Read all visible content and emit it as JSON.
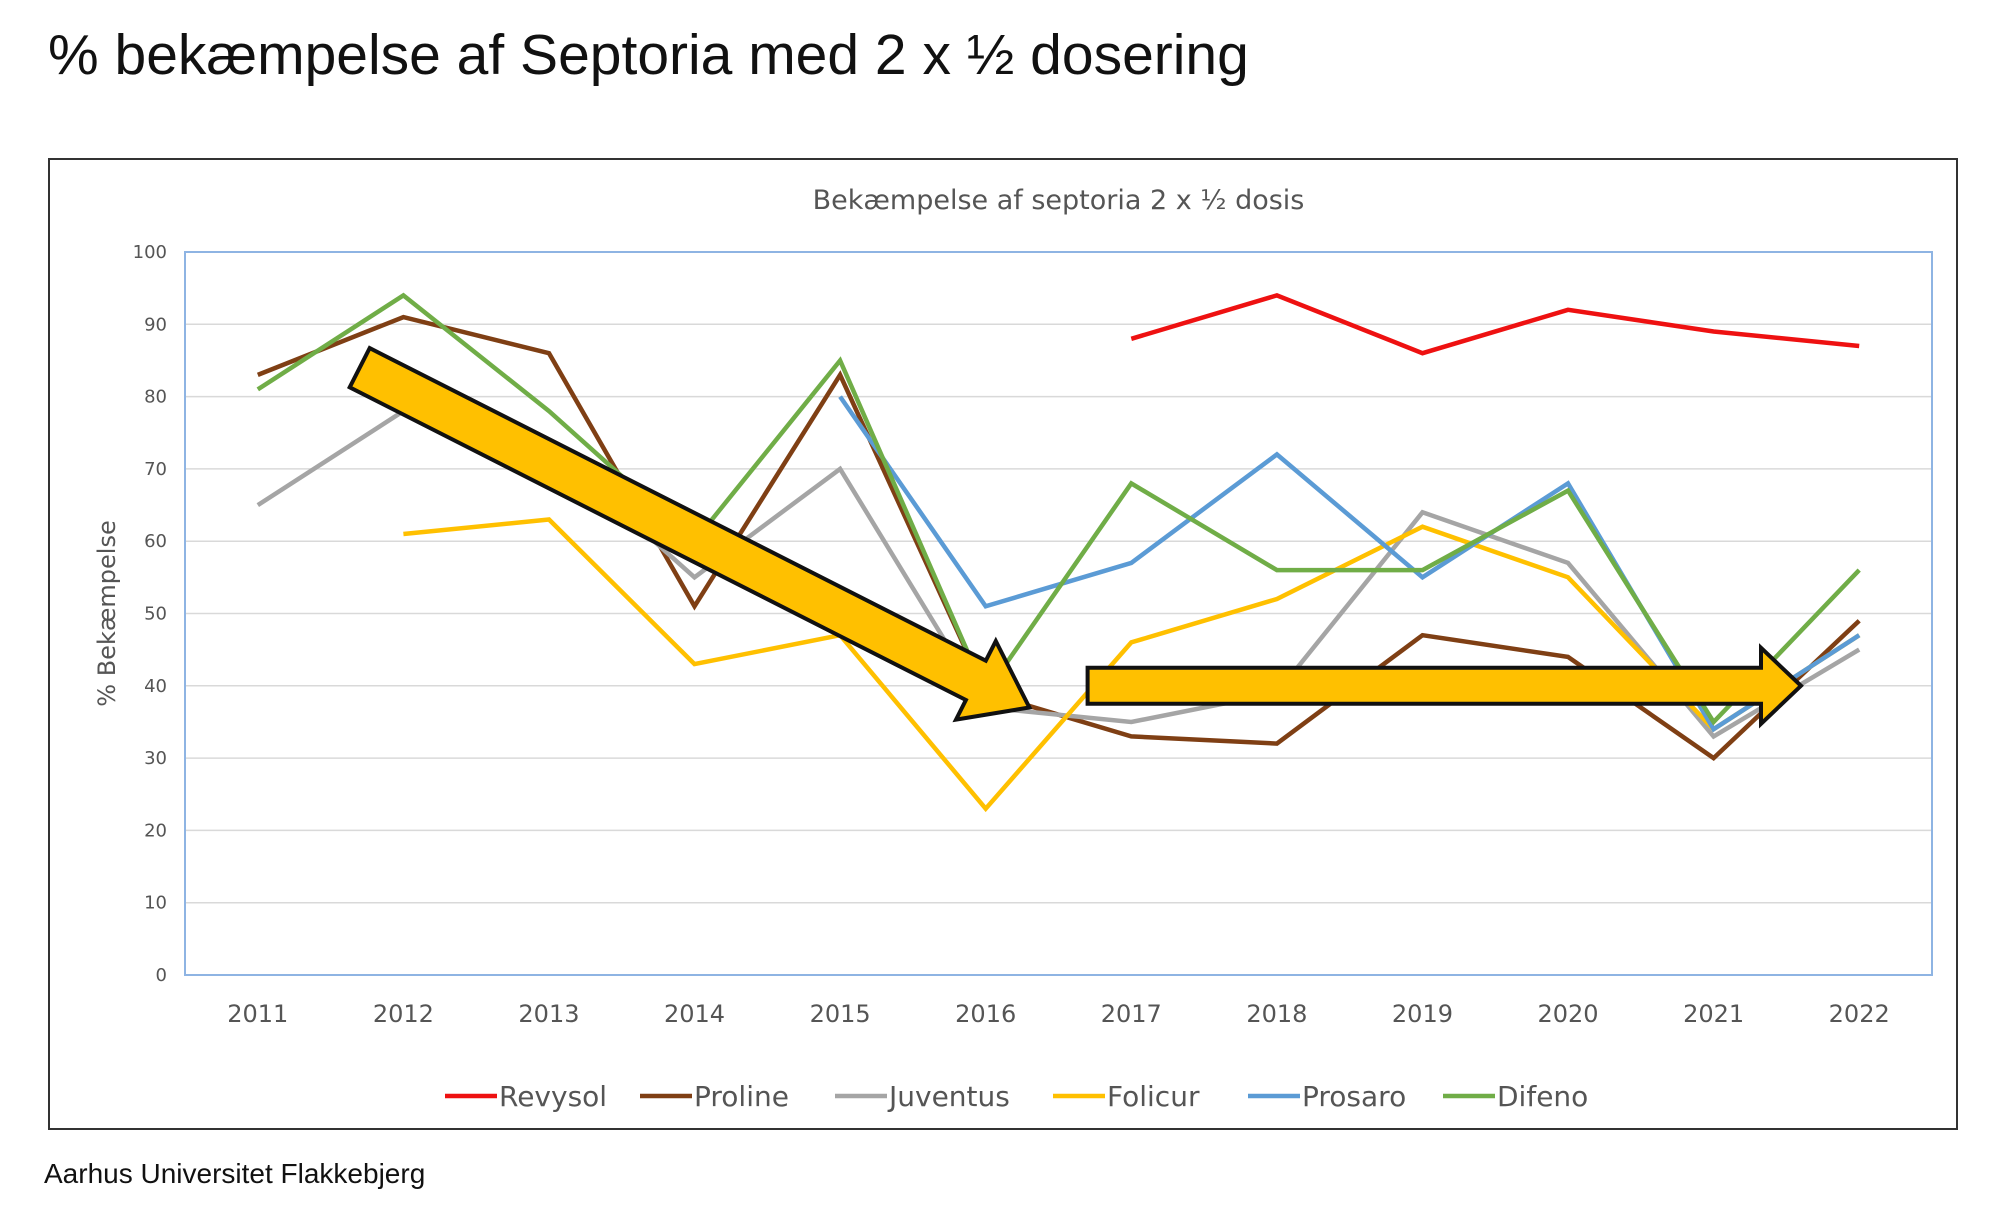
{
  "page": {
    "title": "% bekæmpelse af Septoria med 2 x ½ dosering",
    "footer": "Aarhus Universitet Flakkebjerg"
  },
  "chart_data": {
    "type": "line",
    "title": "Bekæmpelse af septoria 2 x ½ dosis",
    "xlabel": "",
    "ylabel": "% Bekæmpelse",
    "ylim": [
      0,
      100
    ],
    "yticks": [
      0,
      10,
      20,
      30,
      40,
      50,
      60,
      70,
      80,
      90,
      100
    ],
    "grid": true,
    "legend_position": "bottom",
    "categories": [
      "2011",
      "2012",
      "2013",
      "2014",
      "2015",
      "2016",
      "2017",
      "2018",
      "2019",
      "2020",
      "2021",
      "2022"
    ],
    "series": [
      {
        "name": "Revysol",
        "color": "#ee1111",
        "values": [
          null,
          null,
          null,
          null,
          null,
          null,
          88,
          94,
          86,
          92,
          89,
          87
        ]
      },
      {
        "name": "Proline",
        "color": "#7f3f14",
        "values": [
          83,
          91,
          86,
          51,
          83,
          39,
          33,
          32,
          47,
          44,
          30,
          49
        ]
      },
      {
        "name": "Juventus",
        "color": "#a5a5a5",
        "values": [
          65,
          78,
          73,
          55,
          70,
          37,
          35,
          39,
          64,
          57,
          33,
          45
        ]
      },
      {
        "name": "Folicur",
        "color": "#ffc000",
        "values": [
          null,
          61,
          63,
          43,
          47,
          23,
          46,
          52,
          62,
          55,
          34,
          47
        ]
      },
      {
        "name": "Prosaro",
        "color": "#5b9bd5",
        "values": [
          null,
          null,
          null,
          null,
          80,
          51,
          57,
          72,
          55,
          68,
          34,
          47
        ]
      },
      {
        "name": "Difeno",
        "color": "#70ad47",
        "values": [
          81,
          94,
          78,
          60,
          85,
          39,
          68,
          56,
          56,
          67,
          35,
          56
        ]
      }
    ],
    "annotations": [
      {
        "type": "arrow",
        "description": "downward trend",
        "from": [
          "2011.7",
          84
        ],
        "to": [
          "2016.3",
          37
        ],
        "color": "#ffc000"
      },
      {
        "type": "arrow",
        "description": "flat trend",
        "from": [
          "2016.7",
          40
        ],
        "to": [
          "2021.6",
          40
        ],
        "color": "#ffc000"
      }
    ]
  }
}
